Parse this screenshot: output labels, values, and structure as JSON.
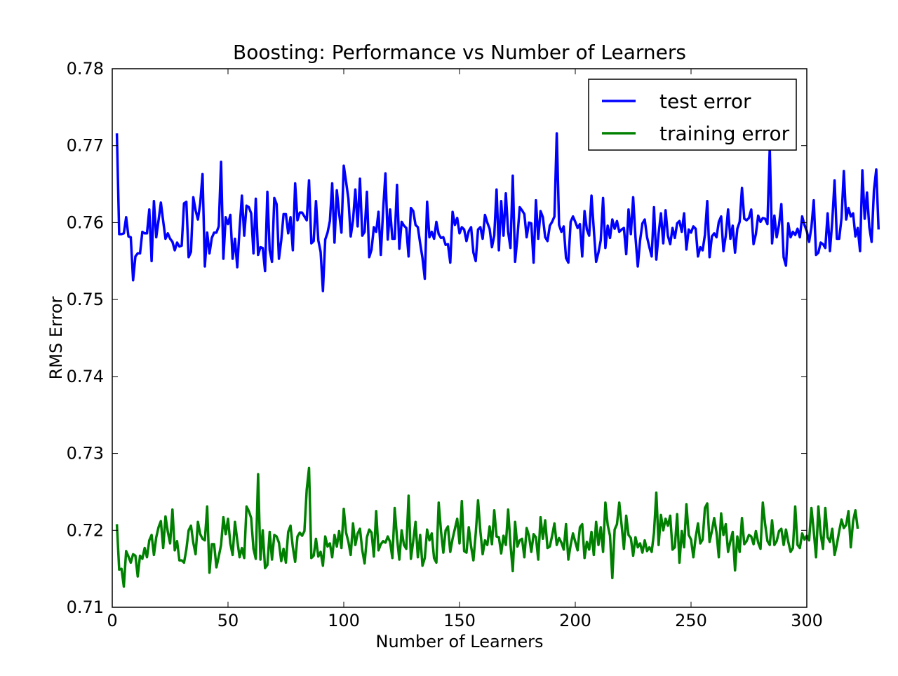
{
  "chart_data": {
    "type": "line",
    "title": "Boosting: Performance vs Number of Learners",
    "xlabel": "Number of Learners",
    "ylabel": "RMS Error",
    "xlim": [
      0,
      300
    ],
    "ylim": [
      0.71,
      0.78
    ],
    "xticks": [
      0,
      50,
      100,
      150,
      200,
      250,
      300
    ],
    "xtick_labels": [
      "0",
      "50",
      "100",
      "150",
      "200",
      "250",
      "300"
    ],
    "yticks": [
      0.71,
      0.72,
      0.73,
      0.74,
      0.75,
      0.76,
      0.77,
      0.78
    ],
    "ytick_labels": [
      "0.71",
      "0.72",
      "0.73",
      "0.74",
      "0.75",
      "0.76",
      "0.77",
      "0.78"
    ],
    "grid": false,
    "legend_position": "top-right",
    "x_start": 2,
    "x_step": 1,
    "series": [
      {
        "name": "test error",
        "color": "#0000ff",
        "values": [
          0.7716,
          0.7585,
          0.7585,
          0.7586,
          0.7607,
          0.7582,
          0.7581,
          0.7525,
          0.7556,
          0.756,
          0.756,
          0.7588,
          0.7586,
          0.7586,
          0.7617,
          0.755,
          0.7628,
          0.7581,
          0.7603,
          0.7626,
          0.7602,
          0.7579,
          0.7586,
          0.7579,
          0.7575,
          0.7564,
          0.7574,
          0.7569,
          0.757,
          0.7625,
          0.7627,
          0.7555,
          0.7562,
          0.7633,
          0.7616,
          0.7604,
          0.7625,
          0.7663,
          0.7543,
          0.7587,
          0.756,
          0.758,
          0.7587,
          0.7587,
          0.7595,
          0.7679,
          0.7553,
          0.7607,
          0.7598,
          0.761,
          0.7553,
          0.7579,
          0.7542,
          0.7592,
          0.7635,
          0.7583,
          0.7622,
          0.762,
          0.7612,
          0.756,
          0.7631,
          0.7558,
          0.7568,
          0.7567,
          0.7537,
          0.764,
          0.7564,
          0.7549,
          0.7632,
          0.7624,
          0.7553,
          0.7577,
          0.7611,
          0.7611,
          0.7586,
          0.7607,
          0.7564,
          0.7651,
          0.7603,
          0.7613,
          0.7613,
          0.7608,
          0.7603,
          0.7655,
          0.7573,
          0.7576,
          0.7628,
          0.7577,
          0.7562,
          0.7511,
          0.7578,
          0.7587,
          0.7602,
          0.7651,
          0.7574,
          0.7642,
          0.7612,
          0.7587,
          0.7674,
          0.7653,
          0.7631,
          0.7582,
          0.7603,
          0.7643,
          0.7595,
          0.7657,
          0.7583,
          0.7588,
          0.764,
          0.7555,
          0.7565,
          0.7594,
          0.7588,
          0.7614,
          0.7558,
          0.7616,
          0.7664,
          0.7578,
          0.7617,
          0.7579,
          0.7579,
          0.7649,
          0.7566,
          0.7601,
          0.7596,
          0.7593,
          0.7556,
          0.7619,
          0.7615,
          0.7597,
          0.7594,
          0.7573,
          0.7554,
          0.7527,
          0.7627,
          0.7581,
          0.7588,
          0.7579,
          0.7601,
          0.7585,
          0.758,
          0.7581,
          0.7571,
          0.7572,
          0.7548,
          0.7614,
          0.7597,
          0.7606,
          0.7586,
          0.7594,
          0.7591,
          0.7576,
          0.7589,
          0.7594,
          0.7561,
          0.755,
          0.7591,
          0.7594,
          0.7579,
          0.761,
          0.76,
          0.7592,
          0.7568,
          0.7583,
          0.7643,
          0.7564,
          0.7628,
          0.7583,
          0.7638,
          0.7588,
          0.7567,
          0.7661,
          0.7549,
          0.7581,
          0.762,
          0.7616,
          0.7611,
          0.7581,
          0.76,
          0.7599,
          0.7548,
          0.7629,
          0.7579,
          0.7615,
          0.7607,
          0.7581,
          0.7576,
          0.7596,
          0.7601,
          0.7608,
          0.7716,
          0.7597,
          0.7588,
          0.7595,
          0.7554,
          0.7548,
          0.7601,
          0.7608,
          0.7601,
          0.7593,
          0.7598,
          0.7556,
          0.7615,
          0.7591,
          0.7583,
          0.7635,
          0.7591,
          0.7549,
          0.7561,
          0.7577,
          0.7632,
          0.7567,
          0.7596,
          0.758,
          0.7604,
          0.7592,
          0.7602,
          0.7588,
          0.7591,
          0.7593,
          0.7559,
          0.7617,
          0.7585,
          0.7633,
          0.7581,
          0.7543,
          0.7577,
          0.7599,
          0.7604,
          0.7581,
          0.7568,
          0.7556,
          0.762,
          0.7552,
          0.7586,
          0.7612,
          0.7573,
          0.7616,
          0.7583,
          0.7572,
          0.7593,
          0.758,
          0.7599,
          0.7602,
          0.7588,
          0.7612,
          0.7565,
          0.7591,
          0.7587,
          0.7595,
          0.7592,
          0.7556,
          0.7568,
          0.7564,
          0.7584,
          0.7628,
          0.7555,
          0.7582,
          0.7586,
          0.7581,
          0.7601,
          0.7608,
          0.7563,
          0.7583,
          0.7617,
          0.7579,
          0.7596,
          0.7561,
          0.7592,
          0.7601,
          0.7645,
          0.7605,
          0.7603,
          0.7606,
          0.7617,
          0.7572,
          0.7585,
          0.7609,
          0.7601,
          0.7606,
          0.7605,
          0.7598,
          0.7697,
          0.7573,
          0.7609,
          0.7581,
          0.7597,
          0.7624,
          0.7555,
          0.7544,
          0.7599,
          0.7581,
          0.7588,
          0.7584,
          0.7592,
          0.7581,
          0.7608,
          0.7597,
          0.7589,
          0.7575,
          0.7594,
          0.7629,
          0.7558,
          0.7561,
          0.7574,
          0.7572,
          0.7567,
          0.7612,
          0.7563,
          0.7602,
          0.7655,
          0.7579,
          0.7579,
          0.7606,
          0.7667,
          0.7604,
          0.7619,
          0.7608,
          0.7612,
          0.7582,
          0.7593,
          0.7563,
          0.7668,
          0.7605,
          0.7639,
          0.7594,
          0.7575,
          0.7642,
          0.7669,
          0.7591
        ]
      },
      {
        "name": "training error",
        "color": "#008000",
        "values": [
          0.7208,
          0.7149,
          0.715,
          0.7127,
          0.7173,
          0.7166,
          0.7158,
          0.7169,
          0.7167,
          0.714,
          0.7167,
          0.7163,
          0.7177,
          0.7165,
          0.7187,
          0.7194,
          0.7168,
          0.7191,
          0.7204,
          0.7212,
          0.7177,
          0.7218,
          0.7198,
          0.7183,
          0.7227,
          0.7174,
          0.7186,
          0.7161,
          0.7161,
          0.7158,
          0.7175,
          0.72,
          0.7206,
          0.7184,
          0.7169,
          0.7211,
          0.7195,
          0.7189,
          0.7187,
          0.7231,
          0.7145,
          0.7182,
          0.7182,
          0.7152,
          0.7166,
          0.7181,
          0.7217,
          0.7195,
          0.7215,
          0.7183,
          0.7168,
          0.7211,
          0.7187,
          0.7165,
          0.7177,
          0.7164,
          0.7231,
          0.7225,
          0.7216,
          0.7176,
          0.7163,
          0.7273,
          0.7162,
          0.72,
          0.7151,
          0.7155,
          0.7198,
          0.7162,
          0.7194,
          0.7192,
          0.7184,
          0.716,
          0.7176,
          0.7158,
          0.7198,
          0.7206,
          0.7178,
          0.7159,
          0.7192,
          0.7197,
          0.7193,
          0.7199,
          0.7253,
          0.7281,
          0.7164,
          0.7167,
          0.7189,
          0.7166,
          0.7172,
          0.7154,
          0.7192,
          0.7179,
          0.7183,
          0.7165,
          0.7194,
          0.7179,
          0.7199,
          0.7177,
          0.7228,
          0.7197,
          0.7185,
          0.7168,
          0.7209,
          0.7181,
          0.7196,
          0.7202,
          0.7174,
          0.7157,
          0.7191,
          0.7201,
          0.7197,
          0.7166,
          0.7225,
          0.7174,
          0.7182,
          0.7186,
          0.7184,
          0.7192,
          0.7185,
          0.7164,
          0.7229,
          0.719,
          0.7162,
          0.72,
          0.7181,
          0.7176,
          0.7245,
          0.7163,
          0.7186,
          0.7211,
          0.7165,
          0.7194,
          0.7154,
          0.7164,
          0.7201,
          0.7187,
          0.7196,
          0.7164,
          0.7158,
          0.7236,
          0.7199,
          0.7171,
          0.72,
          0.7205,
          0.7172,
          0.7189,
          0.7202,
          0.7215,
          0.7183,
          0.7238,
          0.7173,
          0.7171,
          0.7204,
          0.7179,
          0.7161,
          0.7196,
          0.7239,
          0.7199,
          0.7169,
          0.7187,
          0.7181,
          0.7205,
          0.7182,
          0.7226,
          0.7192,
          0.7191,
          0.717,
          0.7193,
          0.7181,
          0.7227,
          0.7182,
          0.7147,
          0.7211,
          0.7179,
          0.7187,
          0.7189,
          0.7165,
          0.7203,
          0.7193,
          0.7172,
          0.7195,
          0.7191,
          0.7162,
          0.7217,
          0.7189,
          0.7213,
          0.7177,
          0.7179,
          0.7193,
          0.7209,
          0.7181,
          0.719,
          0.7184,
          0.7175,
          0.7208,
          0.7162,
          0.7181,
          0.7196,
          0.7185,
          0.7174,
          0.7204,
          0.7208,
          0.7164,
          0.7185,
          0.7175,
          0.7198,
          0.7168,
          0.7211,
          0.7181,
          0.7204,
          0.7172,
          0.7236,
          0.7207,
          0.7193,
          0.7138,
          0.7201,
          0.7208,
          0.7236,
          0.7207,
          0.7176,
          0.7219,
          0.7194,
          0.719,
          0.7167,
          0.7191,
          0.7178,
          0.7183,
          0.7171,
          0.7187,
          0.7173,
          0.7178,
          0.7172,
          0.7197,
          0.7249,
          0.7181,
          0.722,
          0.72,
          0.7215,
          0.7206,
          0.7219,
          0.7175,
          0.7178,
          0.7221,
          0.7158,
          0.7199,
          0.7178,
          0.7234,
          0.7194,
          0.7188,
          0.7165,
          0.7191,
          0.7209,
          0.7183,
          0.7188,
          0.7229,
          0.7235,
          0.7185,
          0.7199,
          0.7216,
          0.7197,
          0.7165,
          0.7222,
          0.7194,
          0.7208,
          0.7172,
          0.7186,
          0.7198,
          0.7148,
          0.7192,
          0.7172,
          0.7216,
          0.7182,
          0.7186,
          0.7194,
          0.7192,
          0.7182,
          0.7199,
          0.7184,
          0.7176,
          0.7236,
          0.7208,
          0.7186,
          0.7181,
          0.7213,
          0.7181,
          0.7186,
          0.7199,
          0.7202,
          0.7181,
          0.7201,
          0.7185,
          0.7172,
          0.7177,
          0.7231,
          0.7181,
          0.7177,
          0.7196,
          0.7188,
          0.7193,
          0.7187,
          0.7229,
          0.7199,
          0.7165,
          0.7231,
          0.7195,
          0.7176,
          0.7229,
          0.7191,
          0.7185,
          0.7202,
          0.7168,
          0.7182,
          0.7199,
          0.7214,
          0.7203,
          0.7207,
          0.7225,
          0.7178,
          0.7212,
          0.7226,
          0.7202
        ]
      }
    ]
  }
}
